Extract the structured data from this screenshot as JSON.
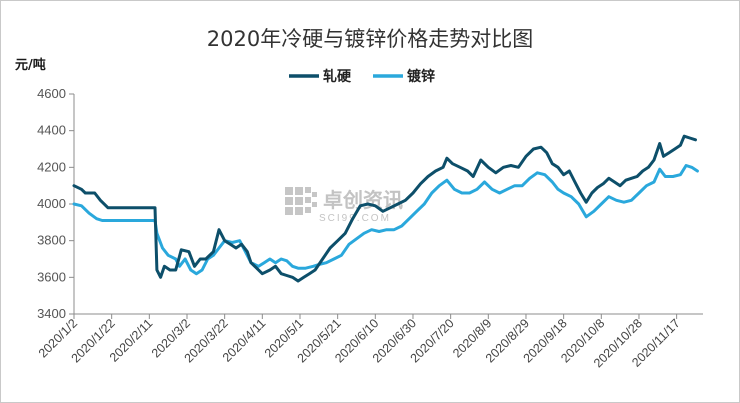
{
  "chart_data": {
    "type": "line",
    "title": "2020年冷硬与镀锌价格走势对比图",
    "ylabel": "元/吨",
    "xlabel": "",
    "ylim": [
      3400,
      4600
    ],
    "yticks": [
      3400,
      3600,
      3800,
      4000,
      4200,
      4400,
      4600
    ],
    "xlim": [
      "2020-01-02",
      "2020-12-01"
    ],
    "xticks": [
      "2020/1/2",
      "2020/1/22",
      "2020/2/11",
      "2020/3/2",
      "2020/3/22",
      "2020/4/11",
      "2020/5/1",
      "2020/5/21",
      "2020/6/10",
      "2020/6/30",
      "2020/7/20",
      "2020/8/9",
      "2020/8/29",
      "2020/9/18",
      "2020/10/8",
      "2020/10/28",
      "2020/11/17"
    ],
    "grid": false,
    "legend": "top-center",
    "watermark": {
      "text": "卓创资讯",
      "sub": "SCI99.COM"
    },
    "series": [
      {
        "name": "轧硬",
        "color": "#0d4f6a",
        "points": [
          [
            "2020-01-02",
            4100
          ],
          [
            "2020-01-06",
            4080
          ],
          [
            "2020-01-08",
            4060
          ],
          [
            "2020-01-13",
            4060
          ],
          [
            "2020-01-16",
            4020
          ],
          [
            "2020-01-20",
            3980
          ],
          [
            "2020-02-14",
            3980
          ],
          [
            "2020-02-15",
            3640
          ],
          [
            "2020-02-17",
            3600
          ],
          [
            "2020-02-19",
            3660
          ],
          [
            "2020-02-22",
            3640
          ],
          [
            "2020-02-25",
            3640
          ],
          [
            "2020-02-28",
            3750
          ],
          [
            "2020-03-03",
            3740
          ],
          [
            "2020-03-06",
            3660
          ],
          [
            "2020-03-09",
            3700
          ],
          [
            "2020-03-12",
            3700
          ],
          [
            "2020-03-16",
            3740
          ],
          [
            "2020-03-19",
            3860
          ],
          [
            "2020-03-22",
            3800
          ],
          [
            "2020-03-25",
            3780
          ],
          [
            "2020-03-28",
            3760
          ],
          [
            "2020-03-31",
            3780
          ],
          [
            "2020-04-03",
            3740
          ],
          [
            "2020-04-05",
            3680
          ],
          [
            "2020-04-08",
            3650
          ],
          [
            "2020-04-11",
            3620
          ],
          [
            "2020-04-15",
            3640
          ],
          [
            "2020-04-18",
            3660
          ],
          [
            "2020-04-21",
            3620
          ],
          [
            "2020-04-24",
            3610
          ],
          [
            "2020-04-27",
            3600
          ],
          [
            "2020-04-30",
            3580
          ],
          [
            "2020-05-03",
            3600
          ],
          [
            "2020-05-06",
            3620
          ],
          [
            "2020-05-09",
            3640
          ],
          [
            "2020-05-13",
            3700
          ],
          [
            "2020-05-17",
            3760
          ],
          [
            "2020-05-21",
            3800
          ],
          [
            "2020-05-25",
            3840
          ],
          [
            "2020-05-29",
            3920
          ],
          [
            "2020-06-02",
            3990
          ],
          [
            "2020-06-06",
            4000
          ],
          [
            "2020-06-10",
            3990
          ],
          [
            "2020-06-14",
            3960
          ],
          [
            "2020-06-18",
            3980
          ],
          [
            "2020-06-22",
            4000
          ],
          [
            "2020-06-26",
            4020
          ],
          [
            "2020-06-30",
            4060
          ],
          [
            "2020-07-04",
            4110
          ],
          [
            "2020-07-08",
            4150
          ],
          [
            "2020-07-12",
            4180
          ],
          [
            "2020-07-16",
            4200
          ],
          [
            "2020-07-18",
            4250
          ],
          [
            "2020-07-21",
            4220
          ],
          [
            "2020-07-25",
            4200
          ],
          [
            "2020-07-29",
            4180
          ],
          [
            "2020-08-01",
            4150
          ],
          [
            "2020-08-05",
            4240
          ],
          [
            "2020-08-09",
            4200
          ],
          [
            "2020-08-13",
            4170
          ],
          [
            "2020-08-17",
            4200
          ],
          [
            "2020-08-21",
            4210
          ],
          [
            "2020-08-25",
            4200
          ],
          [
            "2020-08-29",
            4260
          ],
          [
            "2020-09-02",
            4300
          ],
          [
            "2020-09-06",
            4310
          ],
          [
            "2020-09-09",
            4280
          ],
          [
            "2020-09-12",
            4220
          ],
          [
            "2020-09-15",
            4200
          ],
          [
            "2020-09-18",
            4160
          ],
          [
            "2020-09-21",
            4180
          ],
          [
            "2020-09-24",
            4120
          ],
          [
            "2020-09-27",
            4060
          ],
          [
            "2020-09-30",
            4010
          ],
          [
            "2020-10-03",
            4060
          ],
          [
            "2020-10-06",
            4090
          ],
          [
            "2020-10-09",
            4110
          ],
          [
            "2020-10-12",
            4140
          ],
          [
            "2020-10-15",
            4120
          ],
          [
            "2020-10-18",
            4100
          ],
          [
            "2020-10-21",
            4130
          ],
          [
            "2020-10-24",
            4140
          ],
          [
            "2020-10-27",
            4150
          ],
          [
            "2020-10-30",
            4180
          ],
          [
            "2020-11-02",
            4200
          ],
          [
            "2020-11-05",
            4240
          ],
          [
            "2020-11-08",
            4330
          ],
          [
            "2020-11-10",
            4260
          ],
          [
            "2020-11-13",
            4280
          ],
          [
            "2020-11-16",
            4300
          ],
          [
            "2020-11-19",
            4320
          ],
          [
            "2020-11-21",
            4370
          ],
          [
            "2020-11-24",
            4360
          ],
          [
            "2020-11-27",
            4350
          ]
        ]
      },
      {
        "name": "镀锌",
        "color": "#2aa8dc",
        "points": [
          [
            "2020-01-02",
            4000
          ],
          [
            "2020-01-06",
            3990
          ],
          [
            "2020-01-10",
            3950
          ],
          [
            "2020-01-14",
            3920
          ],
          [
            "2020-01-17",
            3910
          ],
          [
            "2020-02-14",
            3910
          ],
          [
            "2020-02-15",
            3840
          ],
          [
            "2020-02-18",
            3760
          ],
          [
            "2020-02-21",
            3720
          ],
          [
            "2020-02-25",
            3700
          ],
          [
            "2020-02-27",
            3660
          ],
          [
            "2020-03-01",
            3700
          ],
          [
            "2020-03-04",
            3640
          ],
          [
            "2020-03-07",
            3620
          ],
          [
            "2020-03-10",
            3640
          ],
          [
            "2020-03-13",
            3700
          ],
          [
            "2020-03-16",
            3720
          ],
          [
            "2020-03-19",
            3760
          ],
          [
            "2020-03-22",
            3800
          ],
          [
            "2020-03-26",
            3790
          ],
          [
            "2020-03-30",
            3800
          ],
          [
            "2020-04-02",
            3740
          ],
          [
            "2020-04-05",
            3680
          ],
          [
            "2020-04-09",
            3660
          ],
          [
            "2020-04-12",
            3680
          ],
          [
            "2020-04-15",
            3700
          ],
          [
            "2020-04-18",
            3680
          ],
          [
            "2020-04-21",
            3700
          ],
          [
            "2020-04-24",
            3690
          ],
          [
            "2020-04-27",
            3660
          ],
          [
            "2020-04-30",
            3650
          ],
          [
            "2020-05-04",
            3650
          ],
          [
            "2020-05-08",
            3660
          ],
          [
            "2020-05-11",
            3670
          ],
          [
            "2020-05-15",
            3680
          ],
          [
            "2020-05-19",
            3700
          ],
          [
            "2020-05-23",
            3720
          ],
          [
            "2020-05-27",
            3780
          ],
          [
            "2020-05-31",
            3810
          ],
          [
            "2020-06-04",
            3840
          ],
          [
            "2020-06-08",
            3860
          ],
          [
            "2020-06-12",
            3850
          ],
          [
            "2020-06-16",
            3860
          ],
          [
            "2020-06-20",
            3860
          ],
          [
            "2020-06-24",
            3880
          ],
          [
            "2020-06-28",
            3920
          ],
          [
            "2020-07-02",
            3960
          ],
          [
            "2020-07-06",
            4000
          ],
          [
            "2020-07-10",
            4060
          ],
          [
            "2020-07-14",
            4100
          ],
          [
            "2020-07-18",
            4130
          ],
          [
            "2020-07-22",
            4080
          ],
          [
            "2020-07-26",
            4060
          ],
          [
            "2020-07-30",
            4060
          ],
          [
            "2020-08-03",
            4080
          ],
          [
            "2020-08-07",
            4120
          ],
          [
            "2020-08-11",
            4080
          ],
          [
            "2020-08-15",
            4060
          ],
          [
            "2020-08-19",
            4080
          ],
          [
            "2020-08-23",
            4100
          ],
          [
            "2020-08-27",
            4100
          ],
          [
            "2020-08-31",
            4140
          ],
          [
            "2020-09-04",
            4170
          ],
          [
            "2020-09-08",
            4160
          ],
          [
            "2020-09-12",
            4120
          ],
          [
            "2020-09-15",
            4080
          ],
          [
            "2020-09-18",
            4060
          ],
          [
            "2020-09-22",
            4040
          ],
          [
            "2020-09-26",
            4000
          ],
          [
            "2020-09-30",
            3930
          ],
          [
            "2020-10-04",
            3960
          ],
          [
            "2020-10-08",
            4000
          ],
          [
            "2020-10-12",
            4040
          ],
          [
            "2020-10-16",
            4020
          ],
          [
            "2020-10-20",
            4010
          ],
          [
            "2020-10-24",
            4020
          ],
          [
            "2020-10-28",
            4060
          ],
          [
            "2020-11-01",
            4100
          ],
          [
            "2020-11-05",
            4120
          ],
          [
            "2020-11-08",
            4190
          ],
          [
            "2020-11-11",
            4150
          ],
          [
            "2020-11-15",
            4150
          ],
          [
            "2020-11-19",
            4160
          ],
          [
            "2020-11-22",
            4210
          ],
          [
            "2020-11-25",
            4200
          ],
          [
            "2020-11-28",
            4180
          ]
        ]
      }
    ]
  }
}
